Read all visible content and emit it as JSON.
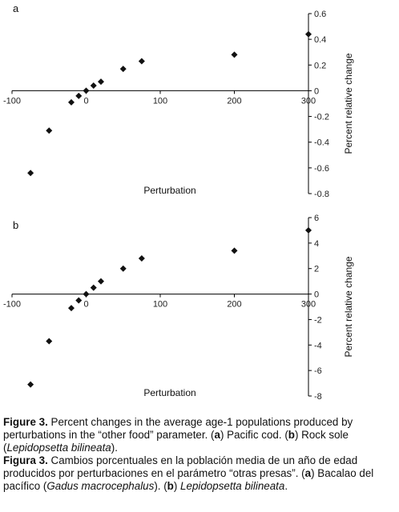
{
  "chart_data": [
    {
      "type": "scatter",
      "panel_label": "a",
      "xlabel": "Perturbation",
      "ylabel": "Percent relative change",
      "xlim": [
        -100,
        300
      ],
      "ylim": [
        -0.8,
        0.6
      ],
      "xticks": [
        -100,
        0,
        100,
        200,
        300
      ],
      "yticks": [
        0.6,
        0.4,
        0.2,
        0,
        -0.2,
        -0.4,
        -0.6,
        -0.8
      ],
      "x": [
        -75,
        -50,
        -20,
        -10,
        0,
        10,
        20,
        50,
        75,
        200,
        300
      ],
      "y": [
        -0.64,
        -0.31,
        -0.09,
        -0.04,
        0.0,
        0.04,
        0.07,
        0.17,
        0.23,
        0.28,
        0.44
      ]
    },
    {
      "type": "scatter",
      "panel_label": "b",
      "xlabel": "Perturbation",
      "ylabel": "Percent relative change",
      "xlim": [
        -100,
        300
      ],
      "ylim": [
        -8,
        6
      ],
      "xticks": [
        -100,
        0,
        100,
        200,
        300
      ],
      "yticks": [
        6,
        4,
        2,
        0,
        -2,
        -4,
        -6,
        -8
      ],
      "x": [
        -75,
        -50,
        -20,
        -10,
        0,
        10,
        20,
        50,
        75,
        200,
        300
      ],
      "y": [
        -7.1,
        -3.7,
        -1.1,
        -0.5,
        0.0,
        0.5,
        1.0,
        2.0,
        2.8,
        3.4,
        5.0
      ]
    }
  ],
  "caption": {
    "en_bold": "Figure 3.",
    "en_1": " Percent changes in the average age-1 populations produced by perturbations in the “other food” parameter. (",
    "en_a": "a",
    "en_2": ") Pacific cod. (",
    "en_b": "b",
    "en_3": ") Rock sole (",
    "en_species": "Lepidopsetta bilineata",
    "en_4": ").",
    "es_bold": "Figura 3.",
    "es_1": " Cambios porcentuales en la población media de un año de edad producidos por perturbaciones en el parámetro “otras presas”. (",
    "es_a": "a",
    "es_2": ") Bacalao del pacífico (",
    "es_species_a": "Gadus macrocephalus",
    "es_3": "). (",
    "es_b": "b",
    "es_4": ") ",
    "es_species_b": "Lepidopsetta bilineata",
    "es_5": "."
  }
}
